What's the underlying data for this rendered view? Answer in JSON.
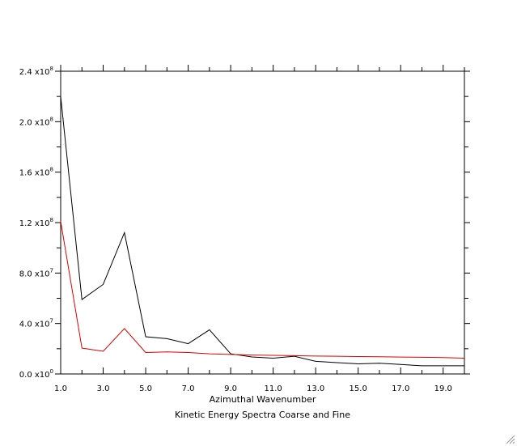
{
  "chart_data": {
    "type": "line",
    "title": "",
    "xlabel": "Azimuthal Wavenumber",
    "caption": "Kinetic Energy Spectra Coarse and Fine",
    "ylabel": "",
    "xlim": [
      1,
      20
    ],
    "ylim": [
      0,
      240000000
    ],
    "x_ticks": [
      {
        "value": 1,
        "label": "1.0"
      },
      {
        "value": 3,
        "label": "3.0"
      },
      {
        "value": 5,
        "label": "5.0"
      },
      {
        "value": 7,
        "label": "7.0"
      },
      {
        "value": 9,
        "label": "9.0"
      },
      {
        "value": 11,
        "label": "11.0"
      },
      {
        "value": 13,
        "label": "13.0"
      },
      {
        "value": 15,
        "label": "15.0"
      },
      {
        "value": 17,
        "label": "17.0"
      },
      {
        "value": 19,
        "label": "19.0"
      }
    ],
    "y_ticks": [
      {
        "value": 0,
        "mantissa": "0.0",
        "exponent": "0"
      },
      {
        "value": 40000000,
        "mantissa": "4.0",
        "exponent": "7"
      },
      {
        "value": 80000000,
        "mantissa": "8.0",
        "exponent": "7"
      },
      {
        "value": 120000000,
        "mantissa": "1.2",
        "exponent": "8"
      },
      {
        "value": 160000000,
        "mantissa": "1.6",
        "exponent": "8"
      },
      {
        "value": 200000000,
        "mantissa": "2.0",
        "exponent": "8"
      },
      {
        "value": 240000000,
        "mantissa": "2.4",
        "exponent": "8"
      }
    ],
    "x_minor_step": 1,
    "y_minor_step": 20000000,
    "grid": false,
    "legend": "none",
    "x": [
      1,
      2,
      3,
      4,
      5,
      6,
      7,
      8,
      9,
      10,
      11,
      12,
      13,
      14,
      15,
      16,
      17,
      18,
      19,
      20
    ],
    "series": [
      {
        "color": "#000000",
        "values": [
          220000000,
          59000000,
          71000000,
          112000000,
          29500000,
          28000000,
          24000000,
          35000000,
          16000000,
          13500000,
          12500000,
          14000000,
          10000000,
          9000000,
          8000000,
          8500000,
          7500000,
          6500000,
          6500000,
          6500000
        ]
      },
      {
        "color": "#dd0000",
        "values": [
          121000000,
          20500000,
          18000000,
          36000000,
          17000000,
          17500000,
          17000000,
          16000000,
          15500000,
          15000000,
          14800000,
          14500000,
          14200000,
          14000000,
          13800000,
          13600000,
          13400000,
          13200000,
          13000000,
          12500000
        ]
      }
    ]
  }
}
